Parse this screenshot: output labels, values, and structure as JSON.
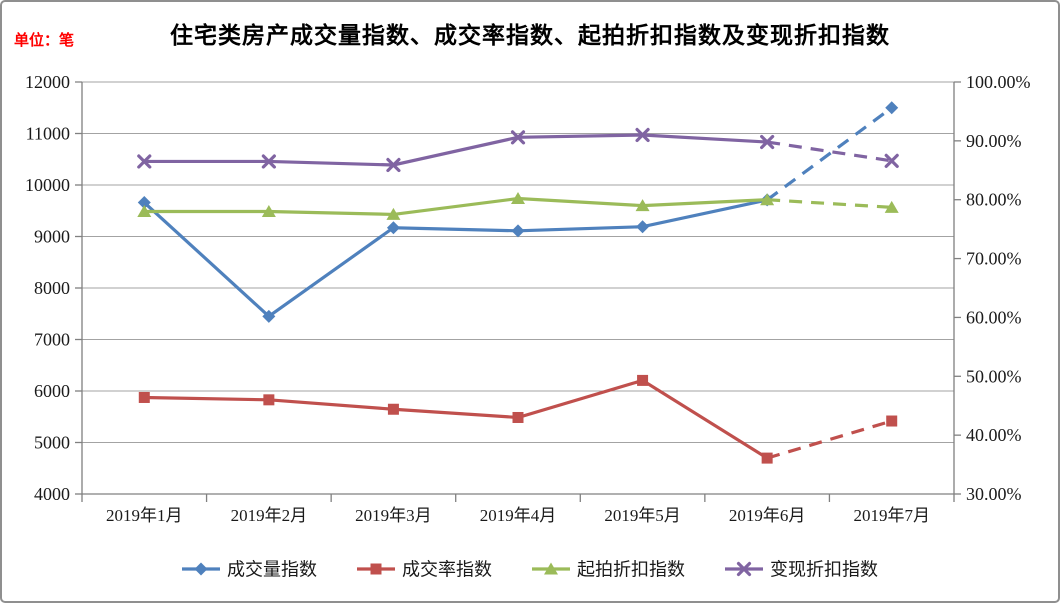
{
  "chart_data": {
    "type": "line",
    "title": "住宅类房产成交量指数、成交率指数、起拍折扣指数及变现折扣指数",
    "unit_label": "单位：笔",
    "categories": [
      "2019年1月",
      "2019年2月",
      "2019年3月",
      "2019年4月",
      "2019年5月",
      "2019年6月",
      "2019年7月"
    ],
    "left_axis": {
      "min": 4000,
      "max": 12000,
      "step": 1000,
      "tick_labels": [
        "12000",
        "11000",
        "10000",
        "9000",
        "8000",
        "7000",
        "6000",
        "5000",
        "4000"
      ]
    },
    "right_axis": {
      "min": 30,
      "max": 100,
      "step": 10,
      "tick_labels": [
        "100.00%",
        "90.00%",
        "80.00%",
        "70.00%",
        "60.00%",
        "50.00%",
        "40.00%",
        "30.00%"
      ]
    },
    "grid": "horizontal",
    "legend_position": "bottom",
    "series": [
      {
        "name": "成交量指数",
        "axis": "left",
        "marker": "diamond",
        "color": "#4F81BD",
        "dashed_from_index": 5,
        "values": [
          9660,
          7450,
          9170,
          9110,
          9190,
          9710,
          11500
        ]
      },
      {
        "name": "成交率指数",
        "axis": "right",
        "marker": "square",
        "color": "#C0504D",
        "dashed_from_index": 5,
        "values": [
          46.4,
          46.0,
          44.4,
          43.0,
          49.3,
          36.1,
          42.4
        ]
      },
      {
        "name": "起拍折扣指数",
        "axis": "right",
        "marker": "triangle",
        "color": "#9BBB59",
        "dashed_from_index": 5,
        "values": [
          78.0,
          78.0,
          77.5,
          80.2,
          79.0,
          80.0,
          78.7
        ]
      },
      {
        "name": "变现折扣指数",
        "axis": "right",
        "marker": "x",
        "color": "#8064A2",
        "dashed_from_index": 5,
        "values": [
          86.5,
          86.5,
          85.9,
          90.6,
          91.0,
          89.8,
          86.6
        ]
      }
    ],
    "style_colors": {
      "grid_line": "#a3a3a3",
      "axis_line": "#808080",
      "title_text": "#000000",
      "unit_label_text": "#ff0000"
    }
  }
}
